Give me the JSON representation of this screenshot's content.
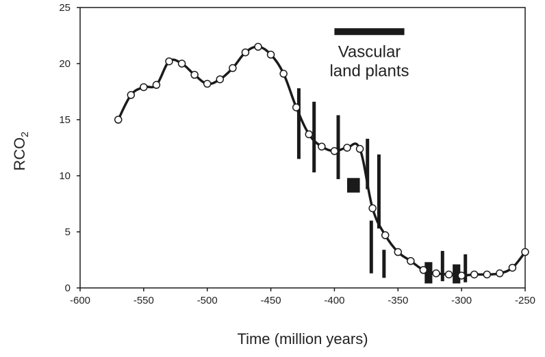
{
  "chart_data": {
    "type": "line",
    "xlabel": "Time (million years)",
    "ylabel": {
      "main": "RCO",
      "subscript": "2"
    },
    "xlim": [
      -600,
      -250
    ],
    "ylim": [
      0,
      25
    ],
    "x_ticks": [
      -600,
      -550,
      -500,
      -450,
      -400,
      -350,
      -300,
      -250
    ],
    "y_ticks": [
      0,
      5,
      10,
      15,
      20,
      25
    ],
    "x_tick_labels": [
      "-600",
      "-550",
      "-500",
      "-450",
      "-400",
      "-350",
      "-300",
      "-250"
    ],
    "y_tick_labels": [
      "0",
      "5",
      "10",
      "15",
      "20",
      "25"
    ],
    "grid": false,
    "series": [
      {
        "x": [
          -570,
          -560,
          -550,
          -540,
          -530,
          -520,
          -510,
          -500,
          -490,
          -480,
          -470,
          -460,
          -450,
          -440,
          -430,
          -420,
          -410,
          -400,
          -390,
          -380,
          -370,
          -360,
          -350,
          -340,
          -330,
          -320,
          -310,
          -300,
          -290,
          -280,
          -270,
          -260,
          -250
        ],
        "y": [
          15.0,
          17.2,
          17.9,
          18.1,
          20.2,
          20.0,
          19.0,
          18.2,
          18.6,
          19.6,
          21.0,
          21.5,
          20.8,
          19.1,
          16.1,
          13.7,
          12.6,
          12.2,
          12.5,
          12.4,
          7.1,
          4.7,
          3.2,
          2.4,
          1.6,
          1.3,
          1.2,
          1.1,
          1.2,
          1.2,
          1.3,
          1.8,
          3.2
        ]
      }
    ],
    "proxy_ranges": [
      {
        "x": -428,
        "y_low": 11.5,
        "y_high": 17.8
      },
      {
        "x": -416,
        "y_low": 10.3,
        "y_high": 16.6
      },
      {
        "x": -397,
        "y_low": 9.7,
        "y_high": 15.4
      },
      {
        "x": -374,
        "y_low": 8.8,
        "y_high": 13.3
      },
      {
        "x": -365,
        "y_low": 5.3,
        "y_high": 11.9
      },
      {
        "x": -371,
        "y_low": 1.3,
        "y_high": 6.0
      },
      {
        "x": -361,
        "y_low": 0.9,
        "y_high": 3.4
      },
      {
        "x": -315,
        "y_low": 0.6,
        "y_high": 3.3
      },
      {
        "x": -297,
        "y_low": 0.5,
        "y_high": 3.0
      }
    ],
    "proxy_boxes": [
      {
        "x_start": -390,
        "x_end": -380,
        "y_low": 8.5,
        "y_high": 9.8
      },
      {
        "x_start": -329,
        "x_end": -323,
        "y_low": 0.4,
        "y_high": 2.3
      },
      {
        "x_start": -307,
        "x_end": -301,
        "y_low": 0.4,
        "y_high": 2.1
      }
    ],
    "annotations": [
      {
        "label": "Vascular land plants",
        "lines": [
          "Vascular",
          "land plants"
        ],
        "bar_x_start": -400,
        "bar_x_end": -345,
        "bar_y": 22.85
      }
    ]
  },
  "colors": {
    "line": "#1a1a1a",
    "marker_fill": "#ffffff",
    "axis": "#1a1a1a",
    "text": "#222222"
  }
}
